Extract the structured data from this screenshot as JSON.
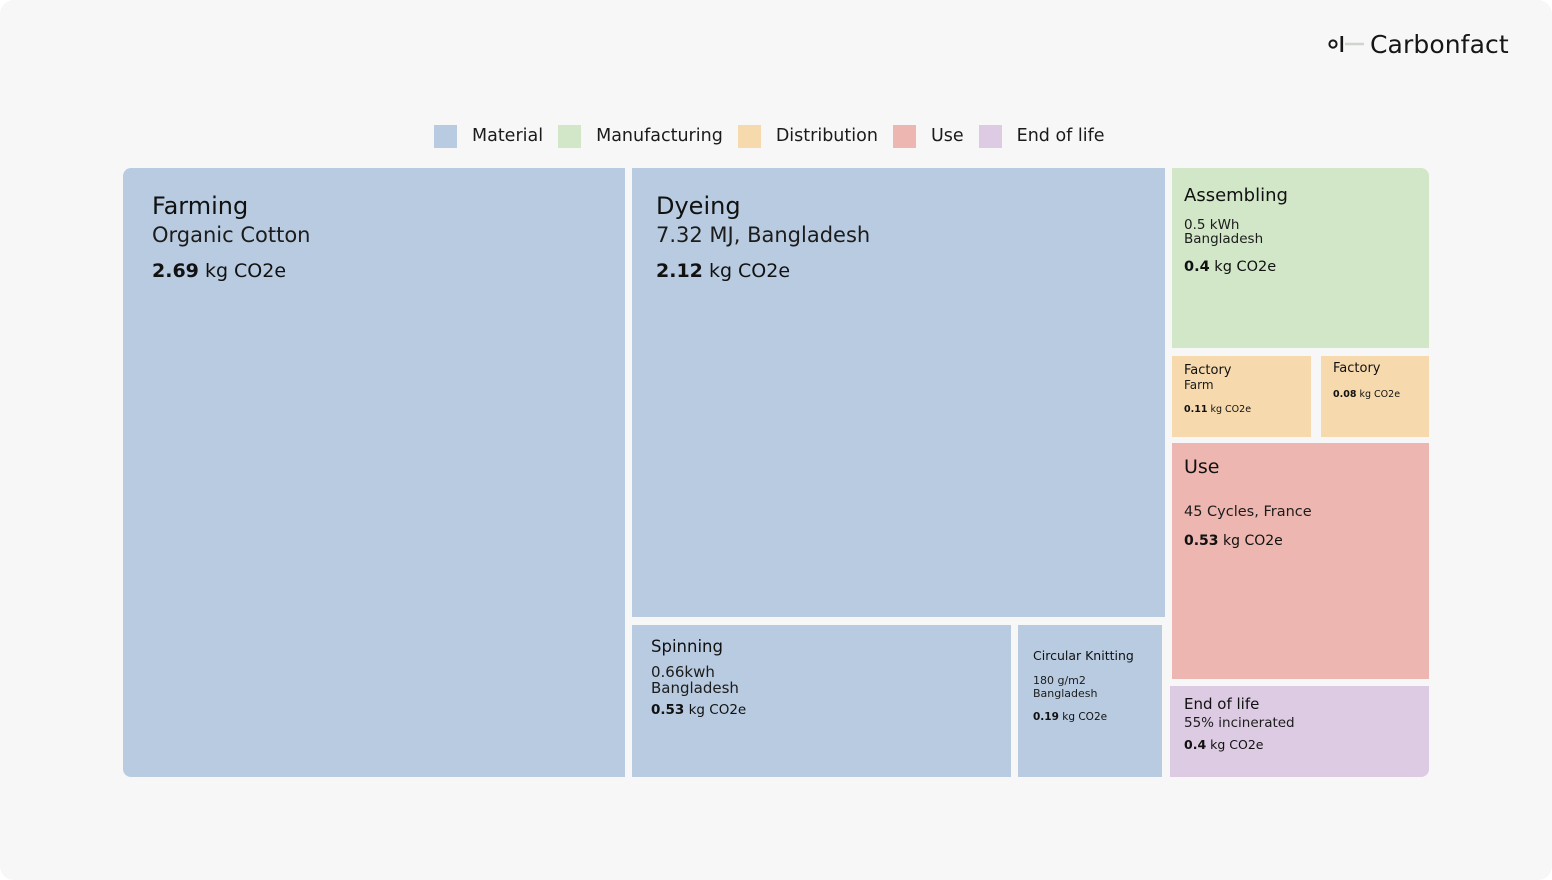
{
  "brand": {
    "name": "Carbonfact",
    "icon": "carbonfact-logo-icon"
  },
  "colors": {
    "material": "#b8cbe0",
    "manufacturing": "#d1e7c8",
    "distribution": "#f6d9ad",
    "use": "#edb6b0",
    "end_of_life": "#dccbe2",
    "background": "#f6f7f6",
    "text": "#111111"
  },
  "chart_data": {
    "type": "treemap",
    "unit": "kg CO2e",
    "legend": [
      {
        "key": "material",
        "label": "Material"
      },
      {
        "key": "manufacturing",
        "label": "Manufacturing"
      },
      {
        "key": "distribution",
        "label": "Distribution"
      },
      {
        "key": "use",
        "label": "Use"
      },
      {
        "key": "end_of_life",
        "label": "End of life"
      }
    ],
    "tiles": [
      {
        "id": "farming",
        "category": "material",
        "name": "Farming",
        "detail": [
          "Organic Cotton"
        ],
        "value": 2.69,
        "value_text": "2.69"
      },
      {
        "id": "dyeing",
        "category": "material",
        "name": "Dyeing",
        "detail": [
          "7.32 MJ, Bangladesh"
        ],
        "value": 2.12,
        "value_text": "2.12"
      },
      {
        "id": "spinning",
        "category": "material",
        "name": "Spinning",
        "detail": [
          "0.66kwh",
          "Bangladesh"
        ],
        "value": 0.53,
        "value_text": "0.53"
      },
      {
        "id": "circular-knitting",
        "category": "material",
        "name": "Circular Knitting",
        "detail": [
          "180 g/m2",
          "Bangladesh"
        ],
        "value": 0.19,
        "value_text": "0.19"
      },
      {
        "id": "assembling",
        "category": "manufacturing",
        "name": "Assembling",
        "detail": [
          "0.5 kWh",
          "Bangladesh"
        ],
        "value": 0.4,
        "value_text": "0.4"
      },
      {
        "id": "factory-farm",
        "category": "distribution",
        "name": "Factory",
        "detail": [
          "Farm"
        ],
        "value": 0.11,
        "value_text": "0.11"
      },
      {
        "id": "factory",
        "category": "distribution",
        "name": "Factory",
        "detail": [],
        "value": 0.08,
        "value_text": "0.08"
      },
      {
        "id": "use",
        "category": "use",
        "name": "Use",
        "detail": [
          "45 Cycles, France"
        ],
        "value": 0.53,
        "value_text": "0.53"
      },
      {
        "id": "end-of-life",
        "category": "end_of_life",
        "name": "End of life",
        "detail": [
          "55% incinerated"
        ],
        "value": 0.4,
        "value_text": "0.4"
      }
    ]
  }
}
